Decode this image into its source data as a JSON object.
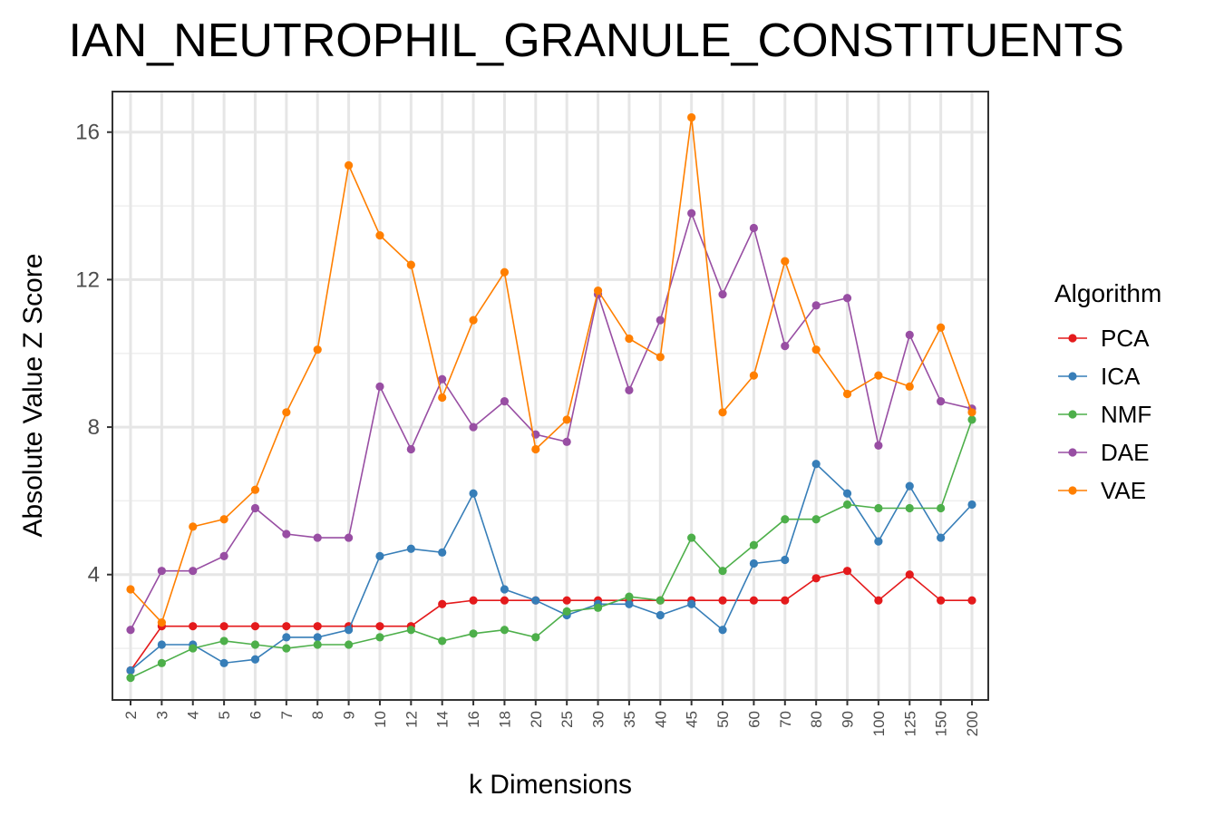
{
  "chart_data": {
    "type": "line",
    "title": "IAN_NEUTROPHIL_GRANULE_CONSTITUENTS",
    "xlabel": "k Dimensions",
    "ylabel": "Absolute Value Z Score",
    "categories": [
      "2",
      "3",
      "4",
      "5",
      "6",
      "7",
      "8",
      "9",
      "10",
      "12",
      "14",
      "16",
      "18",
      "20",
      "25",
      "30",
      "35",
      "40",
      "45",
      "50",
      "60",
      "70",
      "80",
      "90",
      "100",
      "125",
      "150",
      "200"
    ],
    "ylim": [
      0.6,
      17.1
    ],
    "yticks": [
      4,
      8,
      12,
      16
    ],
    "grid": true,
    "legend_title": "Algorithm",
    "legend_position": "right",
    "series": [
      {
        "name": "PCA",
        "color": "#E41A1C",
        "values": [
          1.4,
          2.6,
          2.6,
          2.6,
          2.6,
          2.6,
          2.6,
          2.6,
          2.6,
          2.6,
          3.2,
          3.3,
          3.3,
          3.3,
          3.3,
          3.3,
          3.3,
          3.3,
          3.3,
          3.3,
          3.3,
          3.3,
          3.9,
          4.1,
          3.3,
          4.0,
          3.3,
          3.3
        ]
      },
      {
        "name": "ICA",
        "color": "#377EB8",
        "values": [
          1.4,
          2.1,
          2.1,
          1.6,
          1.7,
          2.3,
          2.3,
          2.5,
          4.5,
          4.7,
          4.6,
          6.2,
          3.6,
          3.3,
          2.9,
          3.2,
          3.2,
          2.9,
          3.2,
          2.5,
          4.3,
          4.4,
          7.0,
          6.2,
          4.9,
          6.4,
          5.0,
          5.9
        ]
      },
      {
        "name": "NMF",
        "color": "#4DAF4A",
        "values": [
          1.2,
          1.6,
          2.0,
          2.2,
          2.1,
          2.0,
          2.1,
          2.1,
          2.3,
          2.5,
          2.2,
          2.4,
          2.5,
          2.3,
          3.0,
          3.1,
          3.4,
          3.3,
          5.0,
          4.1,
          4.8,
          5.5,
          5.5,
          5.9,
          5.8,
          5.8,
          5.8,
          8.2
        ]
      },
      {
        "name": "DAE",
        "color": "#984EA3",
        "values": [
          2.5,
          4.1,
          4.1,
          4.5,
          5.8,
          5.1,
          5.0,
          5.0,
          9.1,
          7.4,
          9.3,
          8.0,
          8.7,
          7.8,
          7.6,
          11.6,
          9.0,
          10.9,
          13.8,
          11.6,
          13.4,
          10.2,
          11.3,
          11.5,
          7.5,
          10.5,
          8.7,
          8.5
        ]
      },
      {
        "name": "VAE",
        "color": "#FF7F00",
        "values": [
          3.6,
          2.7,
          5.3,
          5.5,
          6.3,
          8.4,
          10.1,
          15.1,
          13.2,
          12.4,
          8.8,
          10.9,
          12.2,
          7.4,
          8.2,
          11.7,
          10.4,
          9.9,
          16.4,
          8.4,
          9.4,
          12.5,
          10.1,
          8.9,
          9.4,
          9.1,
          10.7,
          8.4
        ]
      }
    ]
  }
}
